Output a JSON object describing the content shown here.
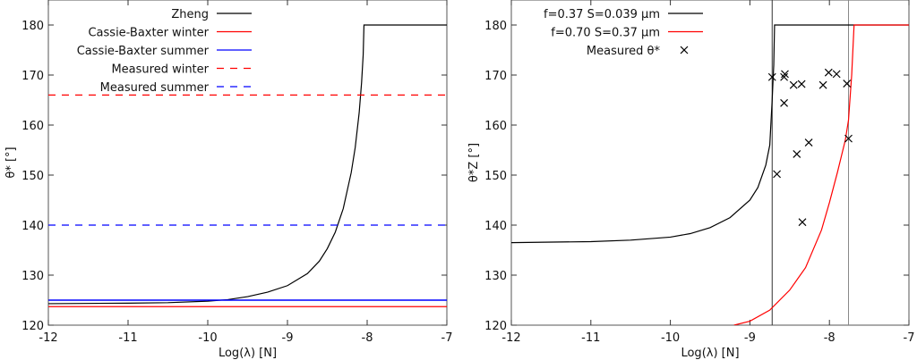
{
  "chart_data": [
    {
      "type": "line",
      "xlabel": "Log(λ) [N]",
      "ylabel": "θ* [°]",
      "xlim": [
        -12,
        -7
      ],
      "ylim": [
        120,
        185
      ],
      "xticks": [
        "-12",
        "-11",
        "-10",
        "-9",
        "-8",
        "-7"
      ],
      "yticks": [
        "120",
        "130",
        "140",
        "150",
        "160",
        "170",
        "180"
      ],
      "legend_placement": "top-left",
      "series": [
        {
          "name": "Zheng",
          "color": "#000000",
          "dash": false,
          "x": [
            -12,
            -11,
            -10.5,
            -10,
            -9.75,
            -9.5,
            -9.25,
            -9,
            -8.75,
            -8.6,
            -8.5,
            -8.4,
            -8.3,
            -8.2,
            -8.15,
            -8.1,
            -8.07,
            -8.05,
            -8.04,
            -7
          ],
          "y": [
            124.3,
            124.4,
            124.5,
            124.8,
            125.1,
            125.7,
            126.6,
            127.9,
            130.3,
            132.8,
            135.3,
            138.6,
            143.3,
            150.5,
            155.5,
            162.5,
            168.5,
            174,
            180,
            180
          ]
        },
        {
          "name": "Cassie-Baxter winter",
          "color": "#ff0000",
          "dash": false,
          "x": [
            -12,
            -7
          ],
          "y": [
            123.7,
            123.7
          ]
        },
        {
          "name": "Cassie-Baxter summer",
          "color": "#0000ff",
          "dash": false,
          "x": [
            -12,
            -7
          ],
          "y": [
            125,
            125
          ]
        },
        {
          "name": "Measured winter",
          "color": "#ff0000",
          "dash": true,
          "x": [
            -12,
            -7
          ],
          "y": [
            166,
            166
          ]
        },
        {
          "name": "Measured summer",
          "color": "#0000ff",
          "dash": true,
          "x": [
            -12,
            -7
          ],
          "y": [
            140,
            140
          ]
        }
      ]
    },
    {
      "type": "line",
      "xlabel": "Log(λ) [N]",
      "ylabel": "θ*Z [°]",
      "xlim": [
        -12,
        -7
      ],
      "ylim": [
        120,
        185
      ],
      "xticks": [
        "-12",
        "-11",
        "-10",
        "-9",
        "-8",
        "-7"
      ],
      "yticks": [
        "120",
        "130",
        "140",
        "150",
        "160",
        "170",
        "180"
      ],
      "legend_placement": "top-left",
      "vlines": [
        -8.72,
        -7.76
      ],
      "series": [
        {
          "name": "f=0.37 S=0.039 μm",
          "color": "#000000",
          "dash": false,
          "x": [
            -12,
            -11,
            -10.5,
            -10,
            -9.75,
            -9.5,
            -9.25,
            -9,
            -8.9,
            -8.8,
            -8.75,
            -8.72,
            -8.7,
            -8.69,
            -7
          ],
          "y": [
            136.5,
            136.7,
            137,
            137.6,
            138.3,
            139.5,
            141.5,
            145,
            147.5,
            152,
            156,
            165,
            172,
            180,
            180
          ]
        },
        {
          "name": "f=0.70 S=0.37 μm",
          "color": "#ff0000",
          "dash": false,
          "x": [
            -9.2,
            -9,
            -8.75,
            -8.5,
            -8.3,
            -8.1,
            -8,
            -7.9,
            -7.8,
            -7.76,
            -7.72,
            -7.69,
            -7
          ],
          "y": [
            120,
            120.8,
            123,
            127,
            131.5,
            139,
            144.5,
            150.5,
            157,
            161,
            170,
            180,
            180
          ]
        },
        {
          "name": "Measured θ*",
          "type": "scatter",
          "marker": "x",
          "color": "#000000",
          "x": [
            -8.72,
            -8.57,
            -8.56,
            -8.45,
            -8.35,
            -8.08,
            -8.01,
            -7.91,
            -7.78,
            -8.57,
            -8.26,
            -8.41,
            -7.76,
            -8.66,
            -8.34
          ],
          "y": [
            169.6,
            169.6,
            170.2,
            168.0,
            168.2,
            168.0,
            170.5,
            170.2,
            168.3,
            164.4,
            156.5,
            154.2,
            157.3,
            150.2,
            140.6
          ]
        }
      ]
    }
  ]
}
